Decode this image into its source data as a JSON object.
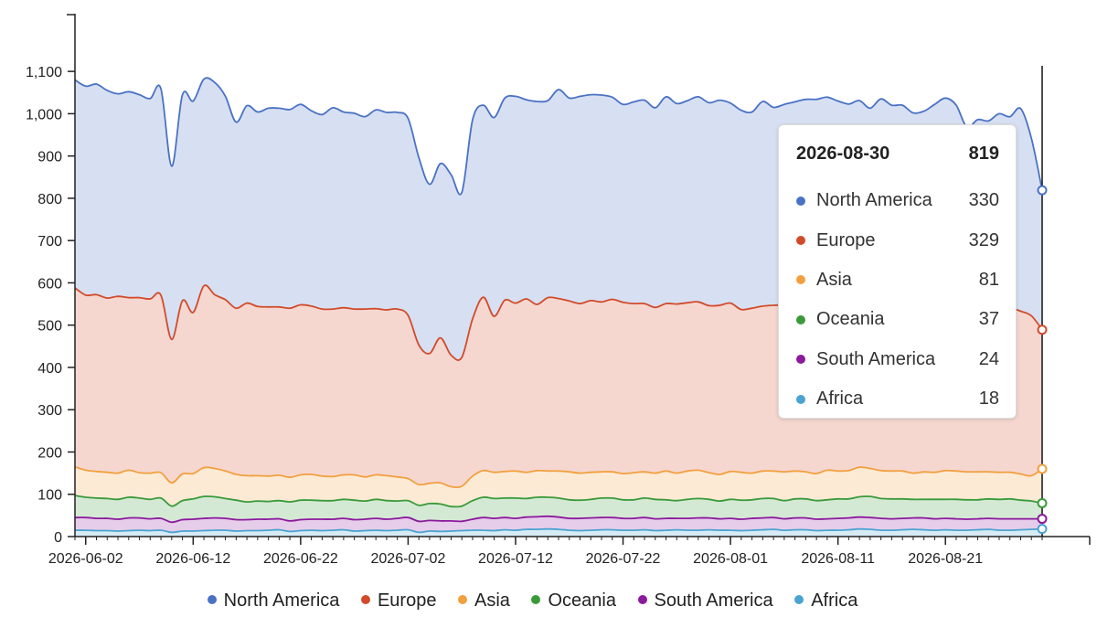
{
  "chart_data": {
    "type": "area",
    "stacked": true,
    "x_start": "2026-06-01",
    "x_end": "2026-08-30",
    "x_ticks": [
      "2026-06-02",
      "2026-06-12",
      "2026-06-22",
      "2026-07-02",
      "2026-07-12",
      "2026-07-22",
      "2026-08-01",
      "2026-08-11",
      "2026-08-21"
    ],
    "ylim": [
      0,
      1150
    ],
    "y_ticks": [
      0,
      100,
      200,
      300,
      400,
      500,
      600,
      700,
      800,
      900,
      1000,
      1100
    ],
    "grid": false,
    "legend_position": "bottom",
    "series": [
      {
        "name": "Africa",
        "color": "#4ba3d1",
        "values": [
          15,
          15,
          14,
          14,
          13,
          14,
          15,
          14,
          15,
          10,
          13,
          13,
          14,
          15,
          15,
          13,
          14,
          14,
          15,
          16,
          12,
          14,
          15,
          14,
          15,
          16,
          13,
          14,
          15,
          14,
          15,
          16,
          10,
          13,
          12,
          13,
          14,
          15,
          15,
          14,
          16,
          15,
          17,
          17,
          18,
          17,
          15,
          14,
          15,
          16,
          16,
          15,
          15,
          16,
          14,
          15,
          16,
          15,
          15,
          16,
          15,
          15,
          14,
          15,
          16,
          17,
          15,
          16,
          16,
          14,
          15,
          15,
          16,
          18,
          17,
          15,
          15,
          16,
          17,
          16,
          15,
          16,
          15,
          15,
          16,
          17,
          15,
          15,
          16,
          17,
          18
        ]
      },
      {
        "name": "South America",
        "color": "#8b1a9c",
        "values": [
          30,
          30,
          29,
          29,
          28,
          30,
          29,
          28,
          28,
          24,
          27,
          28,
          29,
          29,
          28,
          27,
          26,
          27,
          26,
          26,
          25,
          26,
          26,
          27,
          26,
          27,
          27,
          27,
          28,
          27,
          28,
          29,
          26,
          25,
          25,
          24,
          22,
          26,
          30,
          29,
          29,
          28,
          29,
          30,
          30,
          29,
          28,
          29,
          29,
          29,
          29,
          28,
          28,
          29,
          28,
          28,
          27,
          28,
          29,
          28,
          27,
          28,
          27,
          28,
          28,
          28,
          27,
          28,
          28,
          27,
          27,
          28,
          28,
          28,
          28,
          28,
          27,
          27,
          27,
          28,
          27,
          27,
          27,
          26,
          26,
          26,
          27,
          27,
          26,
          25,
          24
        ]
      },
      {
        "name": "Oceania",
        "color": "#3a9a3a",
        "values": [
          52,
          48,
          48,
          47,
          47,
          49,
          47,
          46,
          48,
          38,
          45,
          48,
          52,
          50,
          47,
          46,
          42,
          43,
          42,
          43,
          45,
          46,
          45,
          44,
          44,
          45,
          46,
          43,
          45,
          44,
          41,
          40,
          38,
          40,
          40,
          34,
          36,
          44,
          48,
          47,
          46,
          48,
          44,
          46,
          45,
          45,
          44,
          43,
          44,
          46,
          46,
          44,
          44,
          46,
          46,
          44,
          42,
          45,
          46,
          44,
          42,
          45,
          45,
          44,
          46,
          45,
          43,
          45,
          45,
          44,
          45,
          46,
          45,
          48,
          50,
          47,
          47,
          46,
          44,
          44,
          46,
          45,
          46,
          46,
          45,
          46,
          46,
          47,
          44,
          42,
          37
        ]
      },
      {
        "name": "Asia",
        "color": "#f2a03f",
        "values": [
          68,
          64,
          63,
          62,
          62,
          64,
          60,
          62,
          60,
          55,
          63,
          60,
          68,
          67,
          65,
          61,
          62,
          60,
          60,
          60,
          58,
          60,
          61,
          58,
          57,
          58,
          60,
          57,
          58,
          59,
          57,
          52,
          49,
          48,
          50,
          47,
          47,
          58,
          63,
          62,
          63,
          64,
          62,
          63,
          62,
          64,
          66,
          64,
          64,
          62,
          62,
          62,
          64,
          62,
          62,
          68,
          65,
          67,
          67,
          63,
          63,
          66,
          66,
          63,
          65,
          65,
          68,
          66,
          64,
          64,
          70,
          66,
          67,
          70,
          66,
          66,
          66,
          66,
          62,
          65,
          64,
          68,
          67,
          66,
          66,
          64,
          64,
          63,
          62,
          60,
          81
        ]
      },
      {
        "name": "Europe",
        "color": "#d14b2b",
        "values": [
          423,
          414,
          418,
          412,
          418,
          408,
          414,
          412,
          420,
          339,
          410,
          381,
          430,
          411,
          405,
          393,
          408,
          400,
          400,
          398,
          400,
          402,
          398,
          395,
          396,
          395,
          392,
          397,
          393,
          392,
          397,
          386,
          330,
          307,
          343,
          311,
          305,
          372,
          410,
          369,
          405,
          397,
          410,
          393,
          410,
          408,
          404,
          401,
          406,
          402,
          408,
          405,
          400,
          398,
          392,
          396,
          400,
          398,
          398,
          395,
          400,
          398,
          385,
          390,
          390,
          392,
          395,
          398,
          399,
          400,
          405,
          395,
          398,
          402,
          392,
          395,
          390,
          392,
          392,
          393,
          396,
          399,
          385,
          395,
          400,
          395,
          400,
          390,
          385,
          378,
          329
        ]
      },
      {
        "name": "North America",
        "color": "#4a72c4",
        "values": [
          492,
          494,
          498,
          491,
          479,
          487,
          480,
          474,
          488,
          410,
          487,
          500,
          489,
          502,
          481,
          440,
          467,
          460,
          470,
          470,
          470,
          474,
          462,
          460,
          476,
          463,
          463,
          455,
          470,
          467,
          465,
          466,
          443,
          400,
          412,
          427,
          390,
          471,
          454,
          470,
          478,
          489,
          471,
          480,
          466,
          494,
          480,
          490,
          487,
          489,
          478,
          468,
          477,
          481,
          472,
          489,
          474,
          478,
          485,
          480,
          485,
          473,
          471,
          464,
          484,
          468,
          474,
          475,
          482,
          485,
          477,
          480,
          469,
          465,
          460,
          484,
          475,
          473,
          460,
          460,
          474,
          482,
          480,
          420,
          433,
          435,
          448,
          451,
          479,
          420,
          330
        ]
      }
    ]
  },
  "tooltip": {
    "date": "2026-08-30",
    "total": "819",
    "rows": [
      {
        "name": "North America",
        "value": "330",
        "color": "#4a72c4"
      },
      {
        "name": "Europe",
        "value": "329",
        "color": "#d14b2b"
      },
      {
        "name": "Asia",
        "value": "81",
        "color": "#f2a03f"
      },
      {
        "name": "Oceania",
        "value": "37",
        "color": "#3a9a3a"
      },
      {
        "name": "South America",
        "value": "24",
        "color": "#8b1a9c"
      },
      {
        "name": "Africa",
        "value": "18",
        "color": "#4ba3d1"
      }
    ]
  },
  "legend": [
    {
      "name": "North America",
      "color": "#4a72c4"
    },
    {
      "name": "Europe",
      "color": "#d14b2b"
    },
    {
      "name": "Asia",
      "color": "#f2a03f"
    },
    {
      "name": "Oceania",
      "color": "#3a9a3a"
    },
    {
      "name": "South America",
      "color": "#8b1a9c"
    },
    {
      "name": "Africa",
      "color": "#4ba3d1"
    }
  ]
}
